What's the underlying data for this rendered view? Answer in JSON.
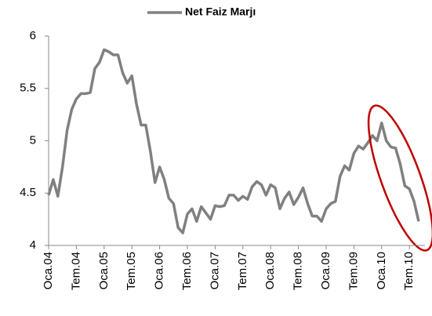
{
  "chart_data": {
    "type": "line",
    "categories": [
      "Oca.04",
      null,
      null,
      null,
      null,
      null,
      "Tem.04",
      null,
      null,
      null,
      null,
      null,
      "Oca.05",
      null,
      null,
      null,
      null,
      null,
      "Tem.05",
      null,
      null,
      null,
      null,
      null,
      "Oca.06",
      null,
      null,
      null,
      null,
      null,
      "Tem.06",
      null,
      null,
      null,
      null,
      null,
      "Oca.07",
      null,
      null,
      null,
      null,
      null,
      "Tem.07",
      null,
      null,
      null,
      null,
      null,
      "Oca.08",
      null,
      null,
      null,
      null,
      null,
      "Tem.08",
      null,
      null,
      null,
      null,
      null,
      "Oca.09",
      null,
      null,
      null,
      null,
      null,
      "Tem.09",
      null,
      null,
      null,
      null,
      null,
      "Oca.10",
      null,
      null,
      null,
      null,
      null,
      "Tem.10",
      null,
      null
    ],
    "series": [
      {
        "name": "Net Faiz Marjı",
        "color": "#808080",
        "values": [
          4.48,
          4.63,
          4.47,
          4.75,
          5.1,
          5.3,
          5.4,
          5.45,
          5.45,
          5.46,
          5.69,
          5.75,
          5.87,
          5.85,
          5.82,
          5.82,
          5.65,
          5.55,
          5.62,
          5.35,
          5.15,
          5.15,
          4.9,
          4.6,
          4.75,
          4.63,
          4.45,
          4.4,
          4.17,
          4.12,
          4.3,
          4.35,
          4.23,
          4.37,
          4.31,
          4.25,
          4.38,
          4.37,
          4.38,
          4.48,
          4.48,
          4.43,
          4.47,
          4.44,
          4.56,
          4.61,
          4.58,
          4.48,
          4.58,
          4.55,
          4.35,
          4.45,
          4.51,
          4.39,
          4.46,
          4.55,
          4.4,
          4.28,
          4.28,
          4.23,
          4.35,
          4.4,
          4.42,
          4.66,
          4.76,
          4.72,
          4.88,
          4.95,
          4.92,
          4.98,
          5.05,
          5.0,
          5.17,
          5.0,
          4.94,
          4.93,
          4.78,
          4.57,
          4.54,
          4.42,
          4.23
        ]
      }
    ],
    "ylim": [
      4,
      6
    ],
    "yticks": [
      4,
      4.5,
      5,
      5.5,
      6
    ],
    "legend": "top"
  }
}
